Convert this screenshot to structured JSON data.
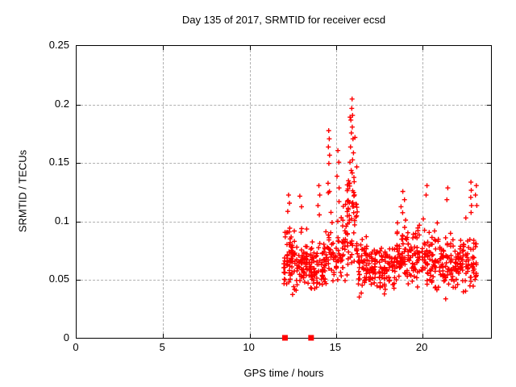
{
  "chart": {
    "title": "Day 135 of 2017, SRMTID for receiver ecsd",
    "xlabel": "GPS time / hours",
    "ylabel": "SRMTID / TECUs"
  },
  "chart_data": {
    "type": "scatter",
    "title": "Day 135 of 2017, SRMTID for receiver ecsd",
    "xlabel": "GPS time / hours",
    "ylabel": "SRMTID / TECUs",
    "xlim": [
      0,
      24
    ],
    "ylim": [
      0,
      0.25
    ],
    "xticks": [
      0,
      5,
      10,
      15,
      20
    ],
    "xtick_labels": [
      "0",
      "5",
      "10",
      "15",
      "20"
    ],
    "yticks": [
      0,
      0.05,
      0.1,
      0.15,
      0.2,
      0.25
    ],
    "ytick_labels": [
      "0",
      "0.05",
      "0.1",
      "0.15",
      "0.2",
      "0.25"
    ],
    "grid": true,
    "legend": "none",
    "marker": {
      "shape": "plus",
      "color": "#ff0000",
      "size": 7,
      "stroke_width": 1.4
    },
    "colors": {
      "marker": "#ff0000",
      "grid": "#b0b0b0",
      "axis": "#000000",
      "background": "#ffffff"
    },
    "data_time_range": [
      12.0,
      23.2
    ],
    "max_point": [
      16.0,
      0.204
    ],
    "baseline_points": {
      "marker": "filled-square",
      "color": "#ff0000",
      "size": 7,
      "points": [
        [
          12.09,
          0
        ],
        [
          13.6,
          0
        ]
      ]
    },
    "summary": "No data before ~12 h GPS time. Dense scatter of SRMTID values mostly 0.03-0.13 TECU from 12 h to 23.2 h, with an enhanced-activity spike reaching ~0.204 TECU near 16 h and secondary highs ~0.18 near 14.6 h; two filled squares sit on the zero baseline at 12.1 h and 13.6 h.",
    "clusters": [
      {
        "t0": 12.0,
        "t1": 12.7,
        "n": 70,
        "base": 0.068,
        "spread": 0.02,
        "lo": 0.034,
        "hi": 0.118,
        "tail": [
          0.12,
          0.045
        ]
      },
      {
        "t0": 12.7,
        "t1": 13.4,
        "n": 60,
        "base": 0.062,
        "spread": 0.018,
        "lo": 0.032,
        "hi": 0.122,
        "tail": [
          0.1,
          0.05
        ]
      },
      {
        "t0": 13.4,
        "t1": 14.3,
        "n": 70,
        "base": 0.058,
        "spread": 0.017,
        "lo": 0.028,
        "hi": 0.112,
        "tail": [
          0.08,
          0.05
        ]
      },
      {
        "t0": 14.3,
        "t1": 15.1,
        "n": 55,
        "base": 0.066,
        "spread": 0.02,
        "lo": 0.034,
        "hi": 0.145,
        "tail": [
          0.12,
          0.07
        ]
      },
      {
        "t0": 15.1,
        "t1": 15.65,
        "n": 40,
        "base": 0.075,
        "spread": 0.024,
        "lo": 0.036,
        "hi": 0.16,
        "tail": [
          0.15,
          0.07
        ]
      },
      {
        "t0": 15.65,
        "t1": 16.3,
        "n": 65,
        "base": 0.095,
        "spread": 0.032,
        "lo": 0.04,
        "hi": 0.202,
        "tail": [
          0.25,
          0.08
        ]
      },
      {
        "t0": 16.3,
        "t1": 17.2,
        "n": 75,
        "base": 0.062,
        "spread": 0.017,
        "lo": 0.03,
        "hi": 0.105,
        "tail": [
          0.06,
          0.035
        ]
      },
      {
        "t0": 17.2,
        "t1": 18.5,
        "n": 95,
        "base": 0.059,
        "spread": 0.015,
        "lo": 0.033,
        "hi": 0.102,
        "tail": [
          0.05,
          0.035
        ]
      },
      {
        "t0": 18.5,
        "t1": 19.4,
        "n": 75,
        "base": 0.071,
        "spread": 0.019,
        "lo": 0.035,
        "hi": 0.122,
        "tail": [
          0.1,
          0.045
        ]
      },
      {
        "t0": 19.4,
        "t1": 20.4,
        "n": 70,
        "base": 0.068,
        "spread": 0.019,
        "lo": 0.034,
        "hi": 0.125,
        "tail": [
          0.1,
          0.05
        ]
      },
      {
        "t0": 20.4,
        "t1": 21.6,
        "n": 85,
        "base": 0.064,
        "spread": 0.019,
        "lo": 0.028,
        "hi": 0.126,
        "tail": [
          0.1,
          0.05
        ]
      },
      {
        "t0": 21.6,
        "t1": 22.6,
        "n": 75,
        "base": 0.062,
        "spread": 0.016,
        "lo": 0.033,
        "hi": 0.112,
        "tail": [
          0.08,
          0.04
        ]
      },
      {
        "t0": 22.6,
        "t1": 23.2,
        "n": 40,
        "base": 0.063,
        "spread": 0.018,
        "lo": 0.034,
        "hi": 0.115,
        "tail": [
          0.1,
          0.05
        ]
      }
    ],
    "highlight_points": [
      [
        15.97,
        0.204
      ],
      [
        15.95,
        0.196
      ],
      [
        16.0,
        0.19
      ],
      [
        15.9,
        0.186
      ],
      [
        15.98,
        0.18
      ],
      [
        15.93,
        0.175
      ],
      [
        16.02,
        0.17
      ],
      [
        15.88,
        0.163
      ],
      [
        16.05,
        0.158
      ],
      [
        15.85,
        0.15
      ],
      [
        16.0,
        0.152
      ],
      [
        15.92,
        0.143
      ],
      [
        16.08,
        0.137
      ],
      [
        14.62,
        0.177
      ],
      [
        14.65,
        0.17
      ],
      [
        14.6,
        0.163
      ],
      [
        14.67,
        0.156
      ],
      [
        14.63,
        0.149
      ],
      [
        14.58,
        0.132
      ],
      [
        14.66,
        0.125
      ],
      [
        15.15,
        0.16
      ],
      [
        15.2,
        0.15
      ],
      [
        15.1,
        0.138
      ],
      [
        15.22,
        0.128
      ],
      [
        14.05,
        0.13
      ],
      [
        14.1,
        0.122
      ],
      [
        14.0,
        0.113
      ],
      [
        14.08,
        0.105
      ],
      [
        12.3,
        0.122
      ],
      [
        12.35,
        0.115
      ],
      [
        12.25,
        0.108
      ],
      [
        12.95,
        0.121
      ],
      [
        13.05,
        0.112
      ],
      [
        18.9,
        0.125
      ],
      [
        19.0,
        0.118
      ],
      [
        18.8,
        0.112
      ],
      [
        20.3,
        0.13
      ],
      [
        20.25,
        0.122
      ],
      [
        21.5,
        0.128
      ],
      [
        21.45,
        0.118
      ],
      [
        22.84,
        0.133
      ],
      [
        22.86,
        0.126
      ],
      [
        22.83,
        0.12
      ],
      [
        22.87,
        0.113
      ],
      [
        22.85,
        0.107
      ],
      [
        23.15,
        0.13
      ],
      [
        23.1,
        0.122
      ],
      [
        23.18,
        0.113
      ]
    ]
  }
}
